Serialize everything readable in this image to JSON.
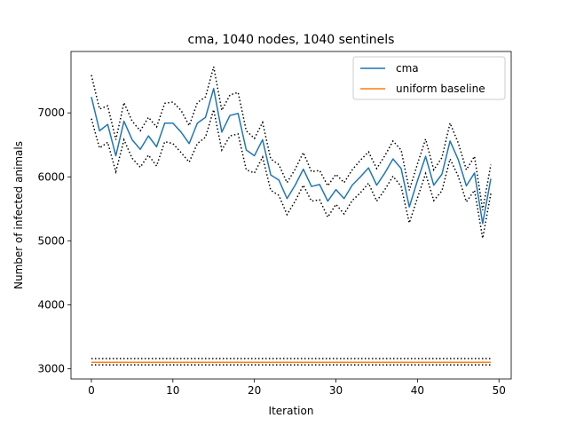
{
  "chart_data": {
    "type": "line",
    "title": "cma, 1040 nodes, 1040 sentinels",
    "xlabel": "Iteration",
    "ylabel": "Number of infected animals",
    "xlim": [
      -2.5,
      51.5
    ],
    "ylim": [
      2840,
      7960
    ],
    "xticks": [
      0,
      10,
      20,
      30,
      40,
      50
    ],
    "yticks": [
      3000,
      4000,
      5000,
      6000,
      7000
    ],
    "grid": false,
    "legend_position": "top-right",
    "x": [
      0,
      1,
      2,
      3,
      4,
      5,
      6,
      7,
      8,
      9,
      10,
      11,
      12,
      13,
      14,
      15,
      16,
      17,
      18,
      19,
      20,
      21,
      22,
      23,
      24,
      25,
      26,
      27,
      28,
      29,
      30,
      31,
      32,
      33,
      34,
      35,
      36,
      37,
      38,
      39,
      40,
      41,
      42,
      43,
      44,
      45,
      46,
      47,
      48,
      49
    ],
    "series": [
      {
        "name": "cma",
        "color": "#1f77b4",
        "values": [
          7250,
          6720,
          6820,
          6330,
          6870,
          6580,
          6430,
          6640,
          6470,
          6840,
          6840,
          6700,
          6520,
          6840,
          6930,
          7380,
          6700,
          6960,
          6990,
          6420,
          6330,
          6580,
          6030,
          5950,
          5660,
          5870,
          6120,
          5850,
          5880,
          5620,
          5800,
          5660,
          5870,
          6000,
          6140,
          5870,
          6060,
          6280,
          6130,
          5530,
          5940,
          6320,
          5870,
          6040,
          6560,
          6270,
          5860,
          6060,
          5270,
          5970
        ],
        "upper": [
          7590,
          7060,
          7110,
          6580,
          7160,
          6870,
          6720,
          6930,
          6780,
          7150,
          7170,
          7040,
          6800,
          7160,
          7250,
          7720,
          7040,
          7280,
          7320,
          6720,
          6600,
          6850,
          6280,
          6190,
          5910,
          6120,
          6380,
          6080,
          6100,
          5860,
          6040,
          5910,
          6110,
          6260,
          6390,
          6130,
          6330,
          6560,
          6420,
          5790,
          6200,
          6590,
          6110,
          6300,
          6840,
          6530,
          6110,
          6320,
          5480,
          6190
        ],
        "lower": [
          6910,
          6450,
          6540,
          6080,
          6580,
          6290,
          6150,
          6340,
          6170,
          6550,
          6520,
          6380,
          6230,
          6520,
          6620,
          7050,
          6420,
          6640,
          6670,
          6110,
          6060,
          6310,
          5790,
          5710,
          5410,
          5620,
          5870,
          5620,
          5640,
          5370,
          5570,
          5420,
          5630,
          5750,
          5900,
          5620,
          5800,
          6010,
          5850,
          5280,
          5670,
          6050,
          5630,
          5780,
          6280,
          6010,
          5610,
          5790,
          5040,
          5740
        ]
      },
      {
        "name": "uniform baseline",
        "color": "#ff7f0e",
        "constant": 3100,
        "upper": 3160,
        "lower": 3060
      }
    ]
  }
}
